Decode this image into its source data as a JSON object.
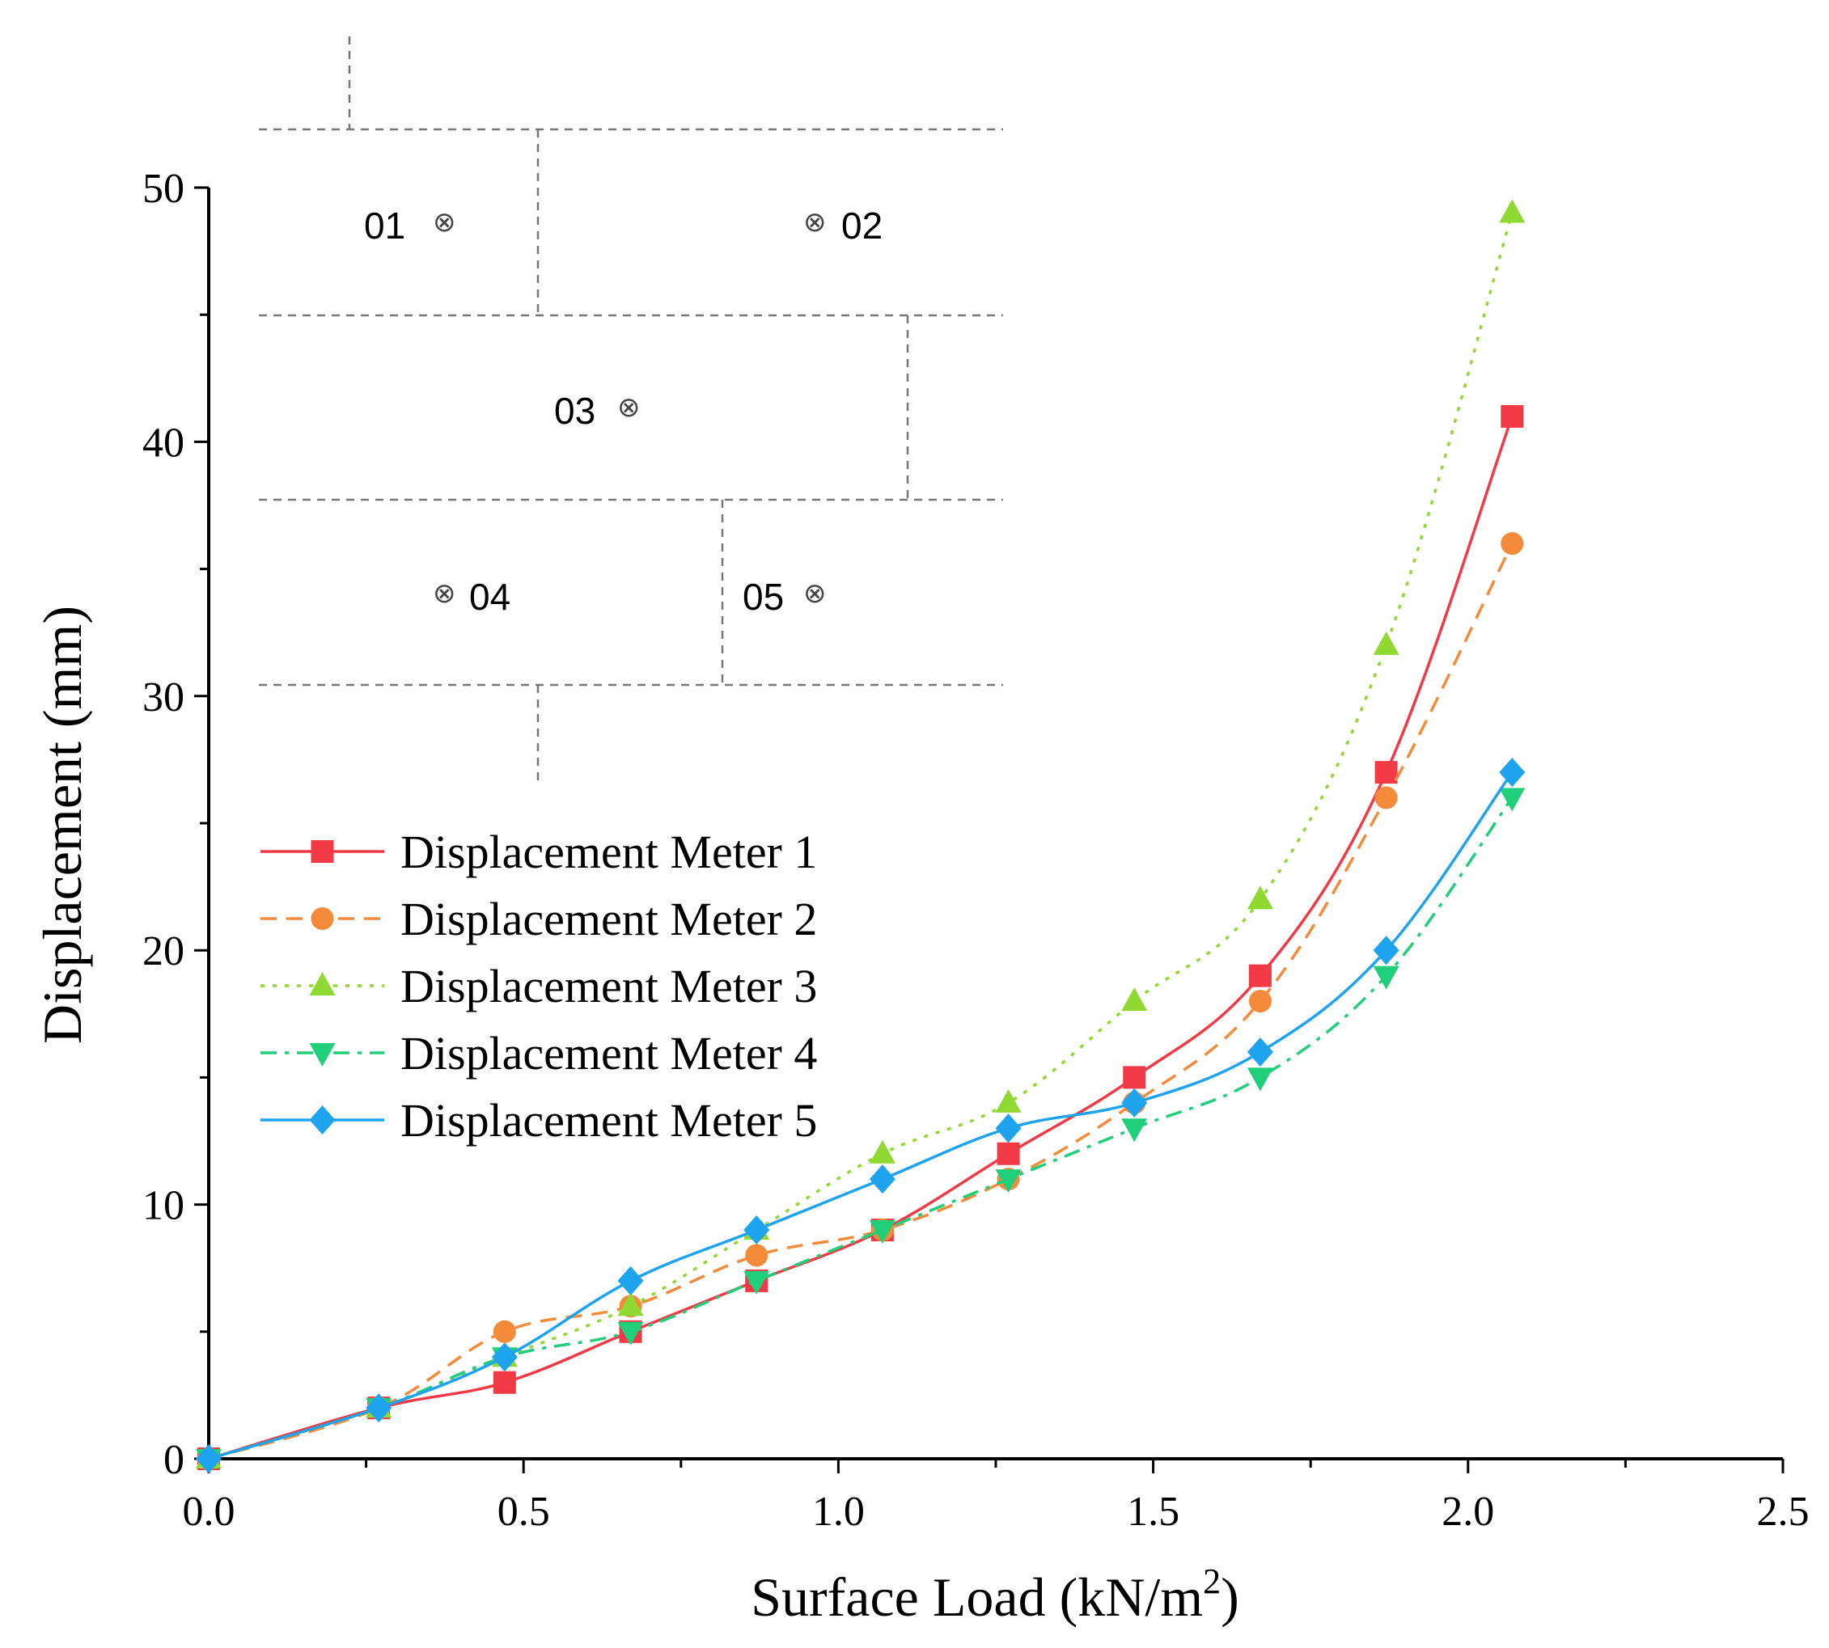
{
  "chart_data": {
    "type": "line",
    "title": "",
    "xlabel": "Surface Load (kN/m",
    "xlabel_superscript": "2",
    "xlabel_suffix": ")",
    "ylabel": "Displacement (mm)",
    "xlim": [
      0,
      2.5
    ],
    "ylim": [
      0,
      50
    ],
    "xticks": [
      "0.0",
      "0.5",
      "1.0",
      "1.5",
      "2.0",
      "2.5"
    ],
    "yticks": [
      "0",
      "10",
      "20",
      "30",
      "40",
      "50"
    ],
    "grid": false,
    "legend_position": "middle-left",
    "x": [
      0,
      0.27,
      0.47,
      0.67,
      0.87,
      1.07,
      1.27,
      1.47,
      1.67,
      1.87,
      2.07
    ],
    "series": [
      {
        "name": "Displacement Meter 1",
        "values": [
          0,
          2,
          3,
          5,
          7,
          9,
          12,
          15,
          19,
          27,
          41
        ],
        "color": "#f23a46",
        "dash": "solid",
        "marker": "square"
      },
      {
        "name": "Displacement Meter 2",
        "values": [
          0,
          2,
          5,
          6,
          8,
          9,
          11,
          14,
          18,
          26,
          36
        ],
        "color": "#f58a3a",
        "dash": "dashed",
        "marker": "circle"
      },
      {
        "name": "Displacement Meter 3",
        "values": [
          0,
          2,
          4,
          6,
          9,
          12,
          14,
          18,
          22,
          32,
          49
        ],
        "color": "#8fd932",
        "dash": "dotted",
        "marker": "triangle-up"
      },
      {
        "name": "Displacement Meter 4",
        "values": [
          0,
          2,
          4,
          5,
          7,
          9,
          11,
          13,
          15,
          19,
          26
        ],
        "color": "#1fcf7a",
        "dash": "dashdot",
        "marker": "triangle-down"
      },
      {
        "name": "Displacement Meter 5",
        "values": [
          0,
          2,
          4,
          7,
          9,
          11,
          13,
          14,
          16,
          20,
          27
        ],
        "color": "#1ea3ee",
        "dash": "solid",
        "marker": "diamond"
      }
    ],
    "inset": {
      "description_labels": [
        "01",
        "02",
        "03",
        "04",
        "05"
      ]
    }
  }
}
